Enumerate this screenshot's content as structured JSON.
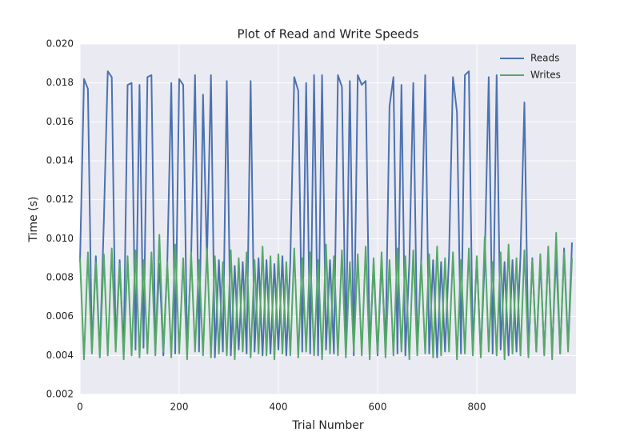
{
  "chart_data": {
    "type": "line",
    "title": "Plot of Read and Write Speeds",
    "xlabel": "Trial Number",
    "ylabel": "Time (s)",
    "x": [
      0,
      8,
      16,
      24,
      32,
      40,
      48,
      56,
      64,
      72,
      80,
      88,
      96,
      104,
      112,
      120,
      128,
      136,
      144,
      152,
      160,
      168,
      176,
      184,
      192,
      200,
      208,
      216,
      224,
      232,
      240,
      248,
      256,
      264,
      272,
      280,
      288,
      296,
      304,
      312,
      320,
      328,
      336,
      344,
      352,
      360,
      368,
      376,
      384,
      392,
      400,
      408,
      416,
      424,
      432,
      440,
      448,
      456,
      464,
      472,
      480,
      488,
      496,
      504,
      512,
      520,
      528,
      536,
      544,
      552,
      560,
      568,
      576,
      584,
      592,
      600,
      608,
      616,
      624,
      632,
      640,
      648,
      656,
      664,
      672,
      680,
      688,
      696,
      704,
      712,
      720,
      728,
      736,
      744,
      752,
      760,
      768,
      776,
      784,
      792,
      800,
      808,
      816,
      824,
      832,
      840,
      848,
      856,
      864,
      872,
      880,
      888,
      896,
      904,
      912,
      920,
      928,
      936,
      944,
      952,
      960,
      968,
      976,
      984,
      992
    ],
    "series": [
      {
        "name": "Reads",
        "color": "#4c72b0",
        "values": [
          0.0088,
          0.0182,
          0.0177,
          0.0042,
          0.0091,
          0.004,
          0.0109,
          0.0186,
          0.0183,
          0.0045,
          0.0089,
          0.0041,
          0.0179,
          0.018,
          0.0043,
          0.0179,
          0.0044,
          0.0183,
          0.0184,
          0.0042,
          0.0087,
          0.004,
          0.0087,
          0.018,
          0.0041,
          0.0182,
          0.0179,
          0.0043,
          0.009,
          0.0184,
          0.0042,
          0.0174,
          0.0088,
          0.0184,
          0.0039,
          0.0089,
          0.0042,
          0.0181,
          0.004,
          0.0086,
          0.0043,
          0.0088,
          0.0041,
          0.0181,
          0.0042,
          0.009,
          0.004,
          0.0089,
          0.0041,
          0.0087,
          0.0043,
          0.0091,
          0.004,
          0.0088,
          0.0183,
          0.0176,
          0.0042,
          0.018,
          0.0041,
          0.0184,
          0.004,
          0.0184,
          0.0043,
          0.0089,
          0.0041,
          0.0184,
          0.0178,
          0.0042,
          0.0181,
          0.004,
          0.0184,
          0.0179,
          0.0181,
          0.0042,
          0.0087,
          0.004,
          0.0089,
          0.0043,
          0.0168,
          0.0183,
          0.0041,
          0.0179,
          0.004,
          0.0088,
          0.018,
          0.0042,
          0.009,
          0.0184,
          0.0041,
          0.0089,
          0.0039,
          0.0088,
          0.0042,
          0.0091,
          0.0183,
          0.0165,
          0.0041,
          0.0184,
          0.0186,
          0.0042,
          0.009,
          0.004,
          0.0089,
          0.0183,
          0.0041,
          0.0184,
          0.0043,
          0.0088,
          0.004,
          0.0089,
          0.0042,
          0.0091,
          0.017,
          0.004,
          0.009,
          0.0042,
          0.0089,
          0.0041,
          0.0093,
          0.0043,
          0.0092,
          0.0041,
          0.0095,
          0.0044,
          0.0098
        ]
      },
      {
        "name": "Writes",
        "color": "#55a868",
        "values": [
          0.009,
          0.0038,
          0.0093,
          0.0041,
          0.0088,
          0.0039,
          0.0092,
          0.004,
          0.0095,
          0.0042,
          0.0087,
          0.0038,
          0.0091,
          0.004,
          0.0094,
          0.0039,
          0.0089,
          0.0041,
          0.0093,
          0.004,
          0.0102,
          0.0042,
          0.0088,
          0.0039,
          0.0097,
          0.0041,
          0.009,
          0.0038,
          0.0093,
          0.0042,
          0.0089,
          0.004,
          0.0095,
          0.0039,
          0.0091,
          0.0041,
          0.0088,
          0.004,
          0.0094,
          0.0038,
          0.009,
          0.0042,
          0.0093,
          0.0039,
          0.0089,
          0.0041,
          0.0096,
          0.004,
          0.0091,
          0.0038,
          0.0092,
          0.0041,
          0.0088,
          0.004,
          0.0095,
          0.0039,
          0.009,
          0.0042,
          0.0093,
          0.004,
          0.0089,
          0.0038,
          0.0097,
          0.0041,
          0.0091,
          0.004,
          0.0094,
          0.0039,
          0.0088,
          0.0042,
          0.0092,
          0.004,
          0.0096,
          0.0038,
          0.009,
          0.0041,
          0.0093,
          0.0039,
          0.0089,
          0.004,
          0.0095,
          0.0042,
          0.0091,
          0.0038,
          0.0094,
          0.004,
          0.0088,
          0.0041,
          0.0092,
          0.0039,
          0.0096,
          0.004,
          0.009,
          0.0042,
          0.0093,
          0.0038,
          0.0089,
          0.0041,
          0.0095,
          0.004,
          0.0091,
          0.0039,
          0.0101,
          0.0042,
          0.0088,
          0.004,
          0.0093,
          0.0038,
          0.0097,
          0.0041,
          0.009,
          0.004,
          0.0094,
          0.0039,
          0.0089,
          0.0042,
          0.0092,
          0.004,
          0.0096,
          0.0038,
          0.0103,
          0.0041,
          0.0093,
          0.0042,
          0.009
        ]
      }
    ],
    "xlim": [
      0,
      1000
    ],
    "xticks": [
      0,
      200,
      400,
      600,
      800
    ],
    "ylim": [
      0.002,
      0.02
    ],
    "yticks": [
      0.002,
      0.004,
      0.006,
      0.008,
      {
        "value": 0.01,
        "label": "0.010"
      },
      0.012,
      0.014,
      0.016,
      0.018,
      {
        "value": 0.02,
        "label": "0.020"
      }
    ],
    "grid": true,
    "legend": "upper right"
  }
}
